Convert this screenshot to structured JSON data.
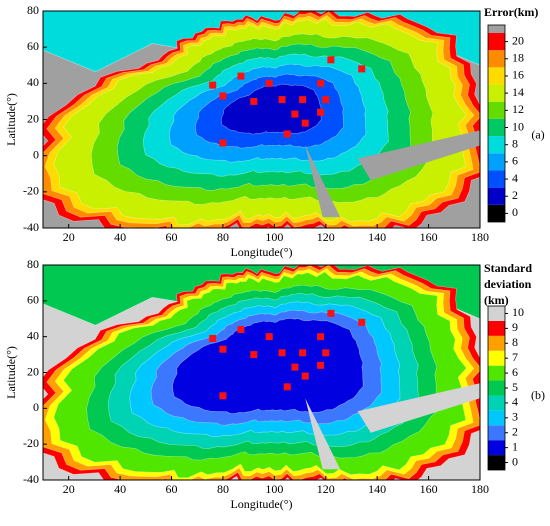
{
  "chart_data": [
    {
      "type": "contour",
      "panel_label": "(a)",
      "xlabel": "Longitude(°)",
      "ylabel": "Latitude(°)",
      "xlim": [
        10,
        180
      ],
      "ylim": [
        -40,
        80
      ],
      "xticks": [
        20,
        40,
        60,
        80,
        100,
        120,
        140,
        160,
        180
      ],
      "yticks": [
        -40,
        -20,
        0,
        20,
        40,
        60,
        80
      ],
      "mask_color": "#a0a0a0",
      "stations": {
        "color": "#ff1010",
        "x": [
          76,
          87,
          98,
          122,
          134,
          80,
          92,
          103,
          111,
          118,
          120,
          108,
          118,
          112,
          105,
          80
        ],
        "y": [
          39,
          44,
          40,
          53,
          48,
          33,
          30,
          31,
          31,
          40,
          31,
          23,
          24,
          18,
          12,
          7
        ]
      },
      "colorbar": {
        "title": [
          "Error(km)"
        ],
        "ylim": [
          -1,
          21
        ],
        "yticks": [
          0,
          2,
          4,
          6,
          8,
          10,
          12,
          14,
          16,
          18,
          20
        ],
        "colors": [
          "#000000",
          "#0000c8",
          "#0050ff",
          "#00a0ff",
          "#00dcdc",
          "#00c864",
          "#64dc00",
          "#c8f000",
          "#ffdc00",
          "#ff8c00",
          "#ff0000"
        ],
        "above_color": "#a0a0a0"
      }
    },
    {
      "type": "contour",
      "panel_label": "(b)",
      "xlabel": "Longitude(°)",
      "ylabel": "Latitude(°)",
      "xlim": [
        10,
        180
      ],
      "ylim": [
        -40,
        80
      ],
      "xticks": [
        20,
        40,
        60,
        80,
        100,
        120,
        140,
        160,
        180
      ],
      "yticks": [
        -40,
        -20,
        0,
        20,
        40,
        60,
        80
      ],
      "mask_color": "#d3d3d3",
      "stations": {
        "color": "#ff1010",
        "x": [
          76,
          87,
          98,
          122,
          134,
          80,
          92,
          103,
          111,
          118,
          120,
          108,
          118,
          112,
          105,
          80
        ],
        "y": [
          39,
          44,
          40,
          53,
          48,
          33,
          30,
          31,
          31,
          40,
          31,
          23,
          24,
          18,
          12,
          7
        ]
      },
      "colorbar": {
        "title": [
          "Standard",
          "deviation",
          "(km)"
        ],
        "ylim": [
          -0.5,
          10.5
        ],
        "yticks": [
          0,
          1,
          2,
          3,
          4,
          5,
          6,
          7,
          8,
          9,
          10
        ],
        "colors": [
          "#000000",
          "#0000e0",
          "#3c78ff",
          "#00c8ff",
          "#00d2b4",
          "#00c850",
          "#50e600",
          "#ffff00",
          "#ffa000",
          "#ff0000",
          "#d3d3d3"
        ]
      }
    }
  ]
}
